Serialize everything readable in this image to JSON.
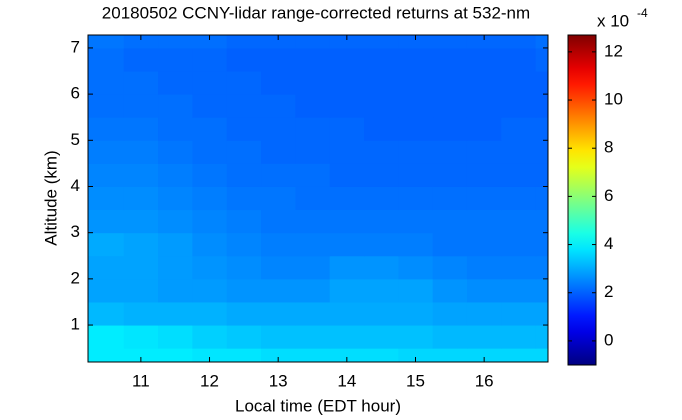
{
  "chart_data": {
    "type": "heatmap",
    "title": "20180502 CCNY-lidar range-corrected returns at 532-nm",
    "xlabel": "Local time (EDT hour)",
    "ylabel": "Altitude (km)",
    "xlim": [
      10.23,
      16.93
    ],
    "xticks": [
      11,
      12,
      13,
      14,
      15,
      16
    ],
    "ylim": [
      0.2,
      7.28
    ],
    "yticks": [
      1,
      2,
      3,
      4,
      5,
      6,
      7
    ],
    "xbins": [
      10.23,
      10.75,
      11.25,
      11.75,
      12.25,
      12.75,
      13.25,
      13.75,
      14.25,
      14.75,
      15.25,
      15.75,
      16.25,
      16.75,
      16.93
    ],
    "ybins": [
      0.2,
      0.5,
      1,
      1.5,
      2,
      2.5,
      3,
      3.5,
      4,
      4.5,
      5,
      5.5,
      6,
      6.5,
      7,
      7.28
    ],
    "values": [
      [
        3.9,
        3.9,
        3.9,
        3.8,
        3.8,
        3.7,
        3.7,
        3.7,
        3.7,
        3.6,
        3.6,
        3.6,
        3.6,
        3.6
      ],
      [
        3.9,
        3.8,
        3.7,
        3.5,
        3.4,
        3.3,
        3.3,
        3.3,
        3.3,
        3.3,
        3.2,
        3.2,
        3.2,
        3.2
      ],
      [
        3.2,
        3.1,
        3.1,
        3.1,
        3.0,
        3.0,
        3.0,
        3.0,
        3.0,
        3.0,
        2.9,
        2.9,
        2.9,
        2.9
      ],
      [
        2.9,
        2.9,
        2.8,
        2.8,
        2.7,
        2.7,
        2.7,
        2.9,
        2.9,
        2.9,
        2.7,
        2.6,
        2.6,
        2.6
      ],
      [
        2.9,
        2.9,
        2.8,
        2.7,
        2.6,
        2.5,
        2.5,
        2.7,
        2.7,
        2.6,
        2.5,
        2.4,
        2.4,
        2.4
      ],
      [
        3.0,
        2.9,
        2.8,
        2.6,
        2.5,
        2.4,
        2.4,
        2.4,
        2.4,
        2.4,
        2.3,
        2.3,
        2.3,
        2.3
      ],
      [
        2.7,
        2.7,
        2.6,
        2.5,
        2.4,
        2.3,
        2.3,
        2.3,
        2.3,
        2.3,
        2.3,
        2.3,
        2.3,
        2.3
      ],
      [
        2.6,
        2.6,
        2.5,
        2.4,
        2.3,
        2.3,
        2.2,
        2.2,
        2.2,
        2.2,
        2.2,
        2.2,
        2.2,
        2.2
      ],
      [
        2.5,
        2.5,
        2.4,
        2.3,
        2.2,
        2.2,
        2.2,
        2.1,
        2.1,
        2.1,
        2.1,
        2.1,
        2.1,
        2.1
      ],
      [
        2.4,
        2.4,
        2.3,
        2.2,
        2.2,
        2.1,
        2.1,
        2.1,
        2.1,
        2.1,
        2.1,
        2.1,
        2.1,
        2.1
      ],
      [
        2.3,
        2.3,
        2.2,
        2.2,
        2.1,
        2.1,
        2.1,
        2.1,
        2.0,
        2.0,
        2.0,
        2.0,
        2.1,
        2.1
      ],
      [
        2.2,
        2.2,
        2.2,
        2.1,
        2.1,
        2.1,
        2.0,
        2.0,
        2.0,
        2.0,
        2.0,
        2.0,
        2.0,
        2.0
      ],
      [
        2.2,
        2.2,
        2.1,
        2.1,
        2.1,
        2.0,
        2.0,
        2.0,
        2.0,
        2.0,
        2.0,
        2.0,
        2.0,
        2.0
      ],
      [
        2.2,
        2.1,
        2.1,
        2.1,
        2.0,
        2.0,
        2.0,
        2.0,
        2.0,
        2.0,
        2.0,
        2.0,
        2.0,
        2.1
      ],
      [
        2.3,
        2.2,
        2.2,
        2.2,
        2.1,
        2.1,
        2.1,
        2.1,
        2.1,
        2.1,
        2.1,
        2.1,
        2.1,
        2.2
      ]
    ],
    "colormap": "jet",
    "clim": [
      -1,
      12.7
    ],
    "cticks": [
      0,
      2,
      4,
      6,
      8,
      10,
      12
    ],
    "colorbar_scale": "x 10",
    "colorbar_exponent": "-4"
  }
}
